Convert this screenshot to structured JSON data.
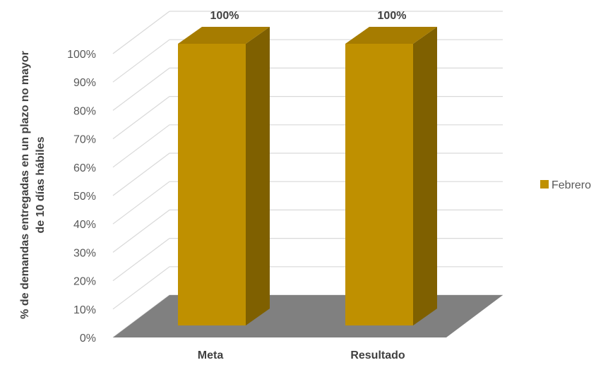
{
  "chart_data": {
    "type": "bar",
    "categories": [
      "Meta",
      "Resultado"
    ],
    "series": [
      {
        "name": "Febrero",
        "values": [
          100,
          100
        ],
        "color": "#BF9000",
        "side_color": "#7F6000",
        "top_color": "#A67C00"
      }
    ],
    "data_labels": [
      "100%",
      "100%"
    ],
    "ylabel_lines": [
      "% de demandas entregadas en un plazo no mayor",
      "de 10 días hábiles"
    ],
    "ylim": [
      0,
      100
    ],
    "yticks": [
      "0%",
      "10%",
      "20%",
      "30%",
      "40%",
      "50%",
      "60%",
      "70%",
      "80%",
      "90%",
      "100%"
    ],
    "legend_position": "right",
    "floor_color": "#808080",
    "gridline_color": "#D9D9D9",
    "style": "3d-column"
  }
}
